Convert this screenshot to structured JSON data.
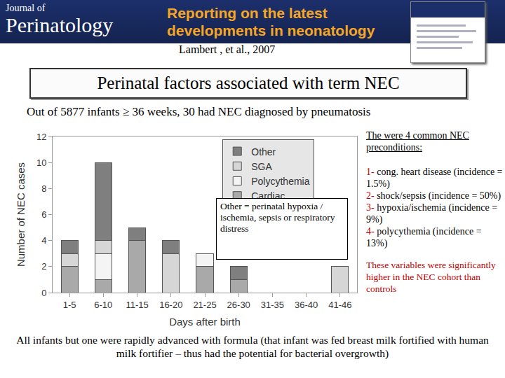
{
  "header": {
    "logo": [
      "Journal of",
      "Perinatology"
    ],
    "tagline": [
      "Reporting on the latest",
      "developments in neonatology"
    ],
    "citation": "Lambert , et al., 2007"
  },
  "title": "Perinatal factors associated with term NEC",
  "subtitle": "Out of 5877 infants ≥ 36 weeks, 30 had NEC diagnosed by pneumatosis",
  "chart_data": {
    "type": "bar",
    "stacked": true,
    "grid": false,
    "legend": "top right",
    "x_label": "Days after birth",
    "y_label": "Number of NEC cases",
    "categories": [
      "1-5",
      "6-10",
      "11-15",
      "16-20",
      "21-25",
      "26-30",
      "31-35",
      "36-40",
      "41-46"
    ],
    "series": [
      {
        "name": "Cardiac",
        "color": "#a9a9a9",
        "values": [
          2,
          1,
          4,
          0,
          2,
          1,
          0,
          0,
          0
        ]
      },
      {
        "name": "Polycythemia",
        "color": "#f4f4f4",
        "values": [
          0,
          2,
          0,
          0,
          1,
          0,
          0,
          0,
          0
        ]
      },
      {
        "name": "SGA",
        "color": "#d6d6d6",
        "values": [
          1,
          1,
          0,
          3,
          0,
          0,
          0,
          0,
          2
        ]
      },
      {
        "name": "Other",
        "color": "#7f7f7f",
        "values": [
          1,
          6,
          1,
          1,
          0,
          1,
          0,
          0,
          0
        ]
      }
    ],
    "ylim": [
      0,
      12
    ],
    "yticks": [
      0,
      2,
      4,
      6,
      8,
      10,
      12
    ],
    "annotation": "Other = perinatal hypoxia / ischemia, sepsis or respiratory distress"
  },
  "side_notes": {
    "heading": "The were 4 common NEC preconditions:",
    "items": [
      {
        "number": "1-",
        "text": "cong. heart disease (incidence = 1.5%)"
      },
      {
        "number": "2-",
        "text": "shock/sepsis (incidence = 50%)"
      },
      {
        "number": "3-",
        "text": "hypoxia/ischemia (incidence = 9%)"
      },
      {
        "number": "4-",
        "text": "polycythemia (incidence = 13%)"
      }
    ],
    "conclusion": "These variables were significantly higher in the NEC cohort than controls"
  },
  "footer": "All infants but one were rapidly advanced with formula (that infant was fed breast milk fortified with human milk fortifier – thus had the potential for bacterial overgrowth)"
}
